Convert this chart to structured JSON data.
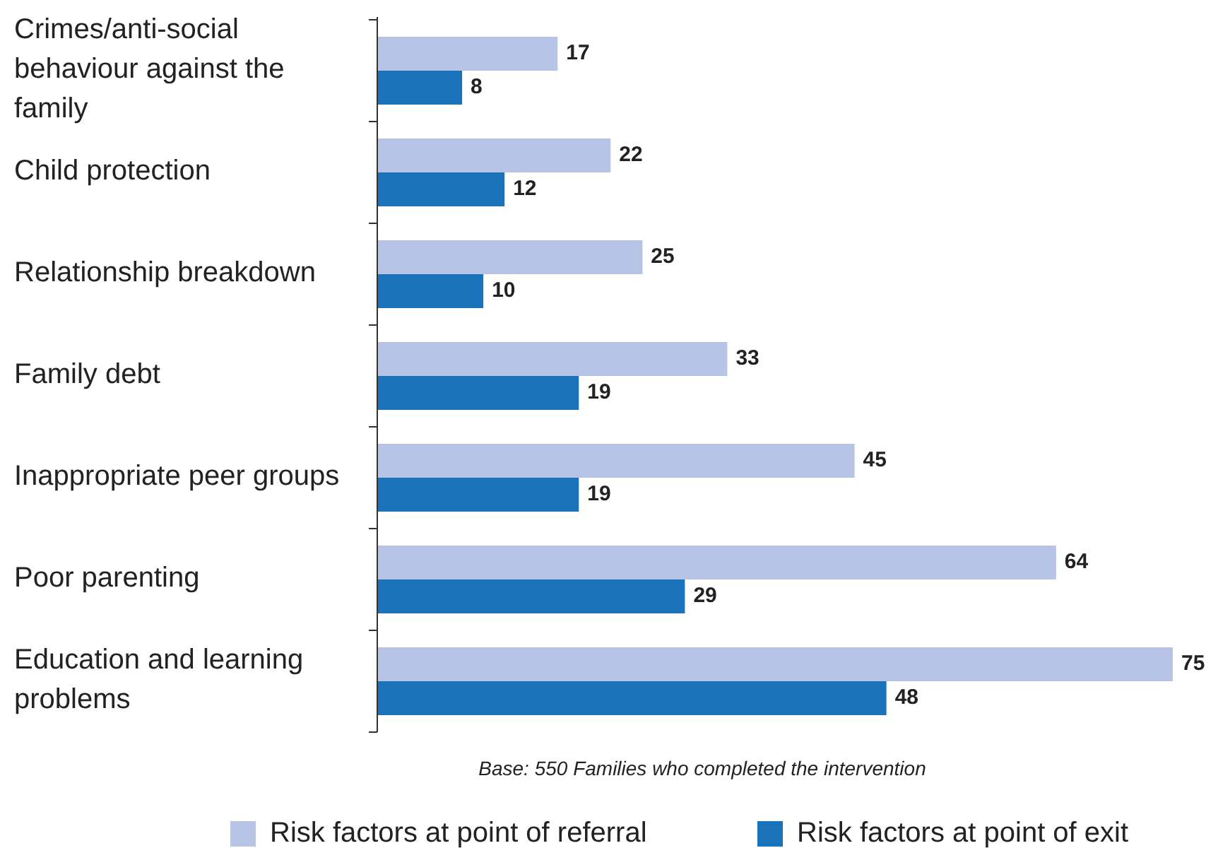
{
  "chart_data": {
    "type": "bar",
    "orientation": "horizontal",
    "categories": [
      "Crimes/anti-social behaviour against the family",
      "Child protection",
      "Relationship breakdown",
      "Family debt",
      "Inappropriate peer groups",
      "Poor parenting",
      "Education and learning problems"
    ],
    "series": [
      {
        "name": "Risk factors at point of referral",
        "color": "#b8c4e6",
        "values": [
          17,
          22,
          25,
          33,
          45,
          64,
          75
        ]
      },
      {
        "name": "Risk factors at point of exit",
        "color": "#1a72bb",
        "values": [
          8,
          12,
          10,
          19,
          19,
          29,
          48
        ]
      }
    ],
    "data_labels": true,
    "legend": "bottom",
    "annotations": [
      "Base: 550 Families who completed the intervention"
    ]
  }
}
